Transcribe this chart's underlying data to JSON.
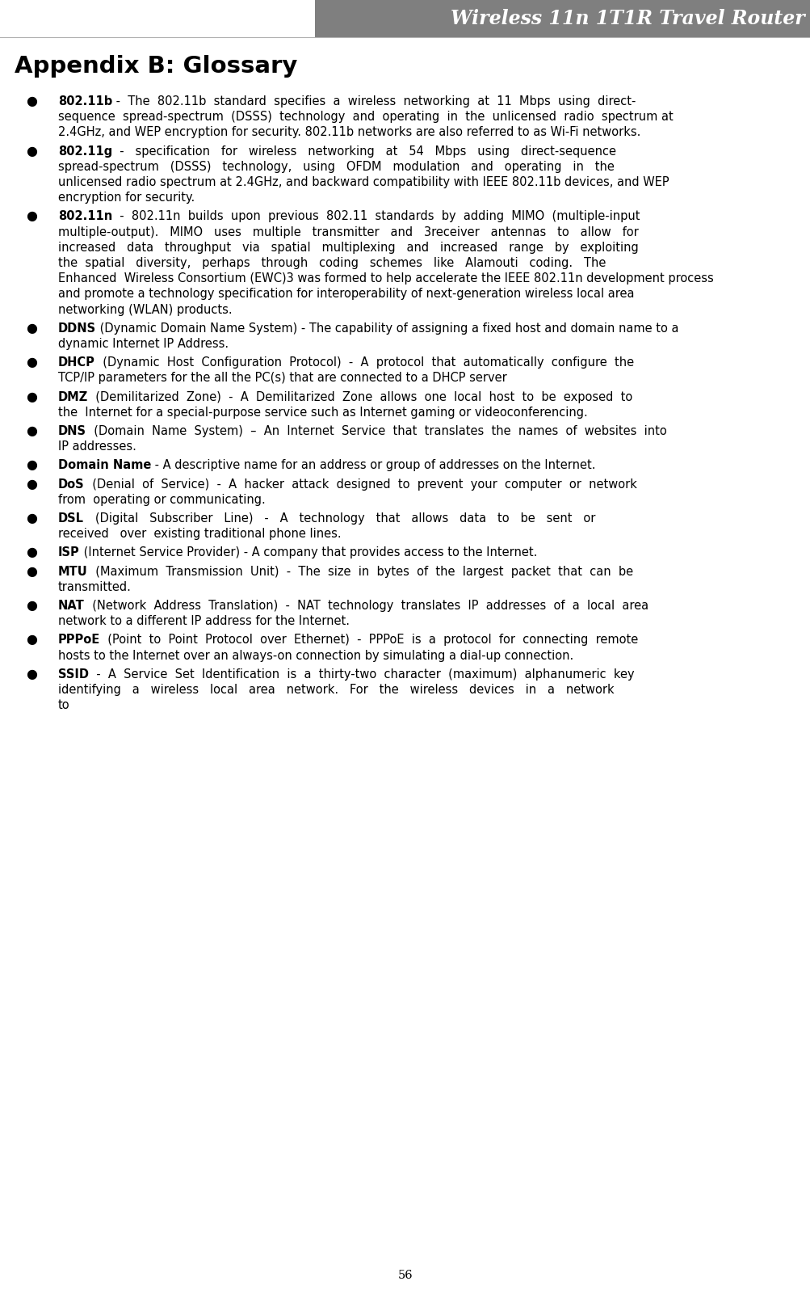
{
  "title": "Wireless 11n 1T1R Travel Router",
  "header": "Appendix B: Glossary",
  "page_number": "56",
  "bg_color": "#ffffff",
  "header_bg": "#7f7f7f",
  "header_text_color": "#ffffff",
  "body_text_color": "#000000",
  "bullet": "●",
  "figsize": [
    10.04,
    16.01
  ],
  "dpi": 100,
  "entries": [
    {
      "bold": "802.11b",
      "normal": " -  The  802.11b  standard  specifies  a  wireless  networking  at  11  Mbps  using  direct-sequence  spread-spectrum  (DSSS)  technology  and  operating  in  the  unlicensed  radio  spectrum at 2.4GHz, and WEP encryption for security. 802.11b networks are also referred to as Wi-Fi networks."
    },
    {
      "bold": "802.11g",
      "normal": "  -   specification   for   wireless   networking   at   54   Mbps   using   direct-sequence  spread-spectrum   (DSSS)   technology,   using   OFDM   modulation   and   operating   in   the  unlicensed radio spectrum at 2.4GHz, and backward compatibility with IEEE 802.11b devices, and WEP encryption for security."
    },
    {
      "bold": "802.11n",
      "normal": "  -  802.11n  builds  upon  previous  802.11  standards  by  adding  MIMO  (multiple-input  multiple-output).   MIMO   uses   multiple   transmitter   and   3receiver   antennas   to   allow   for  increased   data   throughput   via   spatial   multiplexing   and   increased   range   by   exploiting   the  spatial   diversity,   perhaps   through   coding   schemes   like   Alamouti   coding.   The   Enhanced  Wireless Consortium (EWC)3 was formed to help accelerate the IEEE 802.11n development process and promote a technology specification for interoperability of next-generation wireless local area networking (WLAN) products."
    },
    {
      "bold": "DDNS",
      "normal": " (Dynamic Domain Name System) - The capability of assigning a fixed host and domain name to a dynamic Internet IP Address."
    },
    {
      "bold": "DHCP",
      "normal": "  (Dynamic  Host  Configuration  Protocol)  -  A  protocol  that  automatically  configure  the  TCP/IP parameters for the all the PC(s) that are connected to a DHCP server"
    },
    {
      "bold": "DMZ",
      "normal": "  (Demilitarized  Zone)  -  A  Demilitarized  Zone  allows  one  local  host  to  be  exposed  to  the  Internet for a special-purpose service such as Internet gaming or videoconferencing."
    },
    {
      "bold": "DNS",
      "normal": "  (Domain  Name  System)  –  An  Internet  Service  that  translates  the  names  of  websites  into  IP addresses."
    },
    {
      "bold": "Domain Name",
      "normal": " - A descriptive name for an address or group of addresses on the Internet."
    },
    {
      "bold": "DoS",
      "normal": "  (Denial  of  Service)  -  A  hacker  attack  designed  to  prevent  your  computer  or  network  from  operating or communicating."
    },
    {
      "bold": "DSL",
      "normal": "   (Digital   Subscriber   Line)   -   A   technology   that   allows   data   to   be   sent   or   received   over  existing traditional phone lines."
    },
    {
      "bold": "ISP",
      "normal": " (Internet Service Provider) - A company that provides access to the Internet."
    },
    {
      "bold": "MTU",
      "normal": "  (Maximum  Transmission  Unit)  -  The  size  in  bytes  of  the  largest  packet  that  can  be  transmitted."
    },
    {
      "bold": "NAT",
      "normal": "  (Network  Address  Translation)  -  NAT  technology  translates  IP  addresses  of  a  local  area  network to a different IP address for the Internet."
    },
    {
      "bold": "PPPoE",
      "normal": "  (Point  to  Point  Protocol  over  Ethernet)  -  PPPoE  is  a  protocol  for  connecting  remote  hosts to the Internet over an always-on connection by simulating a dial-up connection."
    },
    {
      "bold": "SSID",
      "normal": "  -  A  Service  Set  Identification  is  a  thirty-two  character  (maximum)  alphanumeric  key  identifying   a   wireless   local   area   network.   For   the   wireless   devices   in   a   network   to"
    }
  ]
}
